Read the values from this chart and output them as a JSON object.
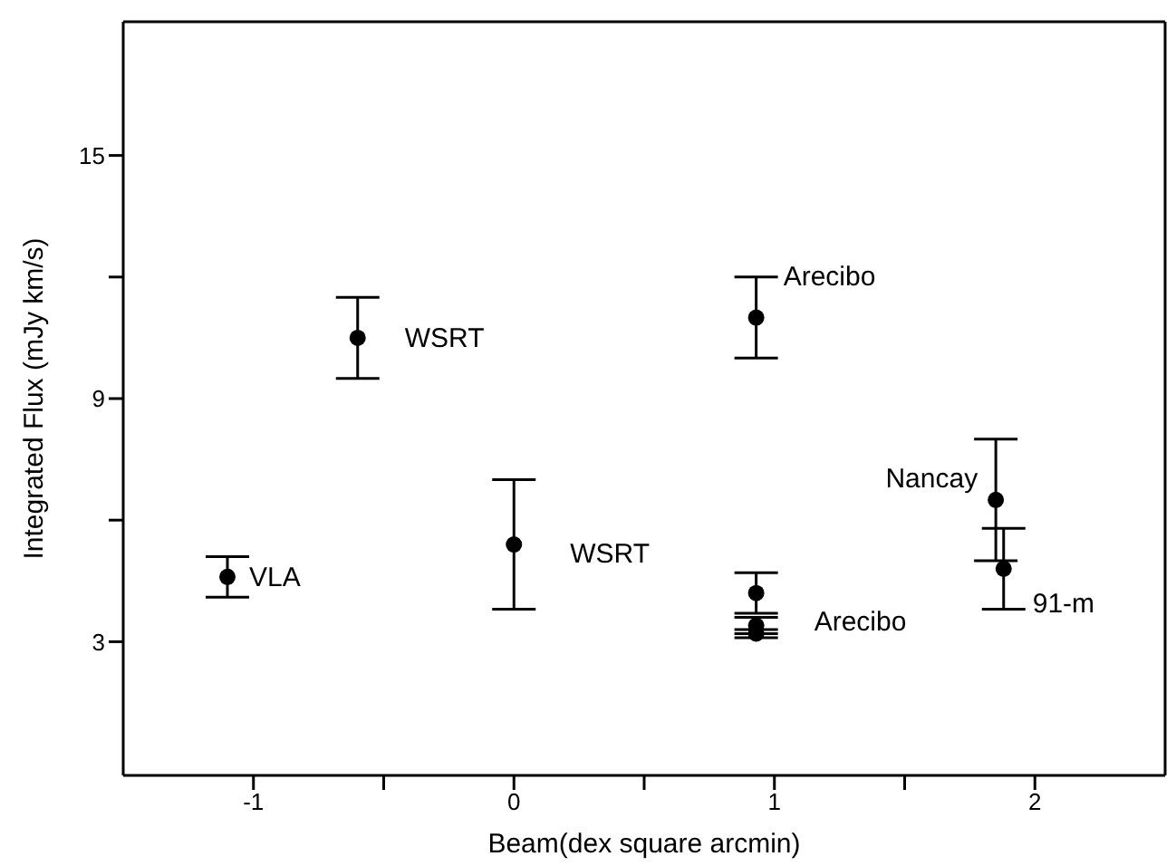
{
  "chart_data": {
    "type": "scatter",
    "xlabel": "Beam(dex square arcmin)",
    "ylabel": "Integrated Flux (mJy km/s)",
    "xlim": [
      -1.5,
      2.5
    ],
    "xticks": [
      -1,
      {
        "value": -0.5,
        "label": null
      },
      0,
      {
        "value": 0.5,
        "label": null
      },
      1,
      {
        "value": 1.5,
        "label": null
      },
      2
    ],
    "ylim": [
      -0.3,
      18.3
    ],
    "yticks": [
      3,
      {
        "value": 6,
        "label": null
      },
      9,
      {
        "value": 12,
        "label": null
      },
      15
    ],
    "marker": "circle",
    "series": [
      {
        "color": "#000000",
        "x": [
          -1.1,
          -0.6,
          0,
          0.93,
          0.93,
          0.93,
          0.93,
          1.85,
          1.88
        ],
        "values": [
          4.6,
          10.5,
          5.4,
          11.0,
          4.2,
          3.4,
          3.2,
          6.5,
          4.8
        ],
        "errors": [
          0.5,
          1.0,
          1.6,
          1.0,
          0.5,
          0.2,
          0.1,
          1.5,
          1.0
        ]
      }
    ],
    "annotations": [
      {
        "text": "VLA",
        "x": -1.1,
        "y": 4.6
      },
      {
        "text": "WSRT",
        "x": -0.6,
        "y": 10.5
      },
      {
        "text": "WSRT",
        "x": 0,
        "y": 5.4
      },
      {
        "text": "Arecibo",
        "x": 0.93,
        "y": 11.0
      },
      {
        "text": "Arecibo",
        "x": 0.93,
        "y": 3.4
      },
      {
        "text": "Nancay",
        "x": 1.85,
        "y": 6.5
      },
      {
        "text": "91-m",
        "x": 1.88,
        "y": 4.8
      }
    ]
  }
}
